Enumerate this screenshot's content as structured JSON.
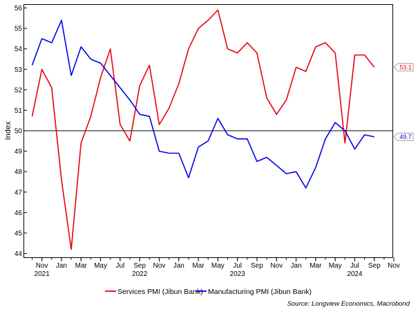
{
  "chart_data": {
    "type": "line",
    "ylabel": "Index",
    "ylim": [
      44,
      56
    ],
    "yticks": [
      44,
      45,
      46,
      47,
      48,
      49,
      50,
      51,
      52,
      53,
      54,
      55,
      56
    ],
    "reference_line": 50,
    "x": [
      "2021-10",
      "2021-11",
      "2021-12",
      "2022-01",
      "2022-02",
      "2022-03",
      "2022-04",
      "2022-05",
      "2022-06",
      "2022-07",
      "2022-08",
      "2022-09",
      "2022-10",
      "2022-11",
      "2022-12",
      "2023-01",
      "2023-02",
      "2023-03",
      "2023-04",
      "2023-05",
      "2023-06",
      "2023-07",
      "2023-08",
      "2023-09",
      "2023-10",
      "2023-11",
      "2023-12",
      "2024-01",
      "2024-02",
      "2024-03",
      "2024-04",
      "2024-05",
      "2024-06",
      "2024-07",
      "2024-08",
      "2024-09"
    ],
    "x_ticks": [
      {
        "month": "Nov",
        "year": "2021",
        "date": "2021-11"
      },
      {
        "month": "Jan",
        "year": "",
        "date": "2022-01"
      },
      {
        "month": "Mar",
        "year": "",
        "date": "2022-03"
      },
      {
        "month": "May",
        "year": "",
        "date": "2022-05"
      },
      {
        "month": "Jul",
        "year": "",
        "date": "2022-07"
      },
      {
        "month": "Sep",
        "year": "2022",
        "date": "2022-09"
      },
      {
        "month": "Nov",
        "year": "",
        "date": "2022-11"
      },
      {
        "month": "Jan",
        "year": "",
        "date": "2023-01"
      },
      {
        "month": "Mar",
        "year": "",
        "date": "2023-03"
      },
      {
        "month": "May",
        "year": "",
        "date": "2023-05"
      },
      {
        "month": "Jul",
        "year": "2023",
        "date": "2023-07"
      },
      {
        "month": "Sep",
        "year": "",
        "date": "2023-09"
      },
      {
        "month": "Nov",
        "year": "",
        "date": "2023-11"
      },
      {
        "month": "Jan",
        "year": "",
        "date": "2024-01"
      },
      {
        "month": "Mar",
        "year": "",
        "date": "2024-03"
      },
      {
        "month": "May",
        "year": "",
        "date": "2024-05"
      },
      {
        "month": "Jul",
        "year": "2024",
        "date": "2024-07"
      },
      {
        "month": "Sep",
        "year": "",
        "date": "2024-09"
      },
      {
        "month": "Nov",
        "year": "",
        "date": "2024-11"
      }
    ],
    "series": [
      {
        "name": "Services PMI (Jibun Bank)",
        "color": "#e8000b",
        "values": [
          50.7,
          53.0,
          52.1,
          47.6,
          44.2,
          49.4,
          50.7,
          52.6,
          54.0,
          50.3,
          49.5,
          52.2,
          53.2,
          50.3,
          51.1,
          52.3,
          54.0,
          55.0,
          55.4,
          55.9,
          54.0,
          53.8,
          54.3,
          53.8,
          51.6,
          50.8,
          51.5,
          53.1,
          52.9,
          54.1,
          54.3,
          53.8,
          49.4,
          53.7,
          53.7,
          53.1
        ],
        "end_label": "53.1"
      },
      {
        "name": "Manufacturing PMI (Jibun Bank)",
        "color": "#0000e8",
        "values": [
          53.2,
          54.5,
          54.3,
          55.4,
          52.7,
          54.1,
          53.5,
          53.3,
          52.7,
          52.1,
          51.5,
          50.8,
          50.7,
          49.0,
          48.9,
          48.9,
          47.7,
          49.2,
          49.5,
          50.6,
          49.8,
          49.6,
          49.6,
          48.5,
          48.7,
          48.3,
          47.9,
          48.0,
          47.2,
          48.2,
          49.6,
          50.4,
          50.0,
          49.1,
          49.8,
          49.7
        ],
        "end_label": "49.7"
      }
    ],
    "legend_position": "bottom",
    "source": "Source: Longview Economics, Macrobond",
    "grid": false
  }
}
